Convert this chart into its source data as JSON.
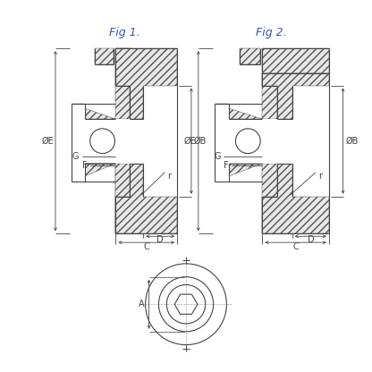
{
  "bg_color": "#ffffff",
  "line_color": "#444444",
  "fig_label_color": "#3355bb",
  "fig_size": [
    4.16,
    4.16
  ],
  "dpi": 100,
  "fig1_label": "Fig 1.",
  "fig2_label": "Fig 2.",
  "dim_labels": {
    "A": "A",
    "C": "C",
    "D": "D",
    "F": "F",
    "G": "G",
    "r": "r",
    "OE": "ØE",
    "OB": "ØB"
  }
}
